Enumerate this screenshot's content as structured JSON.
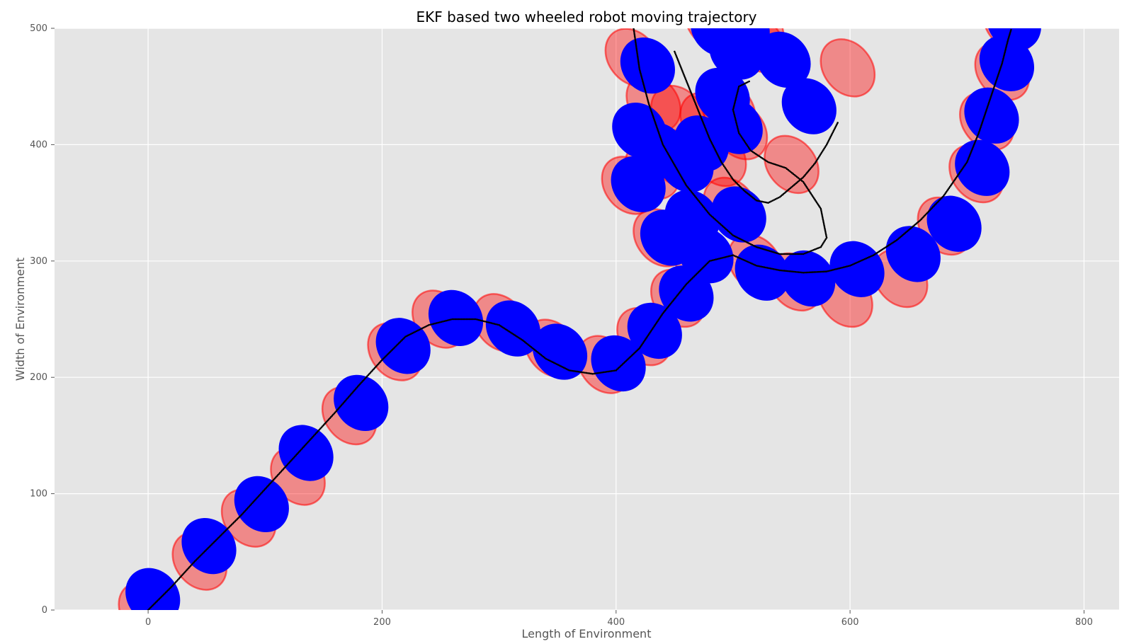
{
  "chart_data": {
    "type": "scatter",
    "title": "EKF based two wheeled robot moving trajectory",
    "xlabel": "Length of Environment",
    "ylabel": "Width of Environment",
    "xlim": [
      -80,
      830
    ],
    "ylim": [
      0,
      500
    ],
    "xticks": [
      0,
      200,
      400,
      600,
      800
    ],
    "yticks": [
      0,
      100,
      200,
      300,
      400,
      500
    ],
    "grid": true,
    "colors": {
      "background": "#e5e5e5",
      "grid": "#ffffff",
      "estimate": "#0000ff",
      "covariance": "#ff0000",
      "trajectory": "#000000"
    },
    "series": [
      {
        "role": "trajectory",
        "x": [
          0,
          20,
          40,
          60,
          80,
          100,
          120,
          140,
          160,
          180,
          200,
          220,
          240,
          260,
          280,
          300,
          320,
          340,
          360,
          380,
          400,
          420,
          440,
          460,
          480,
          500,
          520,
          540,
          560,
          580,
          600,
          620,
          640,
          660,
          680,
          700,
          710,
          720,
          730,
          735,
          738
        ],
        "y": [
          0,
          20,
          42,
          62,
          82,
          104,
          126,
          148,
          170,
          193,
          215,
          235,
          245,
          250,
          250,
          245,
          232,
          216,
          206,
          203,
          206,
          225,
          255,
          280,
          300,
          305,
          296,
          292,
          290,
          291,
          296,
          305,
          318,
          335,
          356,
          385,
          410,
          440,
          470,
          490,
          500
        ]
      },
      {
        "role": "trajectory",
        "x": [
          415,
          420,
          428,
          440,
          460,
          480,
          500,
          520,
          540,
          560,
          575,
          580,
          575,
          560,
          545,
          530,
          515,
          505,
          500,
          505,
          515
        ],
        "y": [
          500,
          465,
          435,
          400,
          365,
          340,
          322,
          312,
          306,
          306,
          312,
          320,
          345,
          368,
          380,
          385,
          395,
          410,
          430,
          450,
          455
        ]
      },
      {
        "role": "trajectory",
        "x": [
          450,
          460,
          470,
          480,
          490,
          500,
          510,
          520,
          530,
          540,
          560,
          570,
          580,
          590
        ],
        "y": [
          480,
          455,
          430,
          405,
          385,
          370,
          360,
          352,
          350,
          355,
          372,
          384,
          400,
          420
        ]
      },
      {
        "role": "estimate",
        "x": [
          4,
          52,
          97,
          135,
          182,
          218,
          263,
          312,
          352,
          402,
          433,
          460,
          477,
          505,
          525,
          564,
          606,
          654,
          689,
          713,
          721,
          734,
          740,
          444,
          460,
          491,
          502,
          508,
          503,
          543,
          565,
          419,
          437,
          420,
          427,
          465,
          473,
          487,
          500
        ],
        "y": [
          12,
          55,
          91,
          135,
          178,
          227,
          251,
          242,
          222,
          212,
          240,
          272,
          305,
          340,
          290,
          285,
          293,
          306,
          332,
          380,
          425,
          470,
          505,
          320,
          383,
          442,
          416,
          500,
          480,
          473,
          433,
          366,
          395,
          412,
          468,
          337,
          401,
          500,
          510
        ]
      },
      {
        "role": "covariance",
        "x": [
          -2,
          44,
          86,
          128,
          172,
          211,
          249,
          301,
          345,
          390,
          424,
          453,
          468,
          498,
          519,
          553,
          596,
          643,
          681,
          708,
          717,
          730,
          737,
          438,
          453,
          478,
          496,
          521,
          506,
          550,
          598,
          411,
          431,
          432,
          414,
          453,
          488,
          520,
          482
        ],
        "y": [
          -1,
          42,
          79,
          115,
          167,
          222,
          250,
          247,
          225,
          211,
          235,
          268,
          308,
          347,
          298,
          282,
          268,
          285,
          330,
          375,
          420,
          463,
          505,
          320,
          388,
          420,
          430,
          487,
          412,
          383,
          466,
          365,
          378,
          436,
          475,
          426,
          389,
          500,
          506
        ]
      }
    ]
  }
}
